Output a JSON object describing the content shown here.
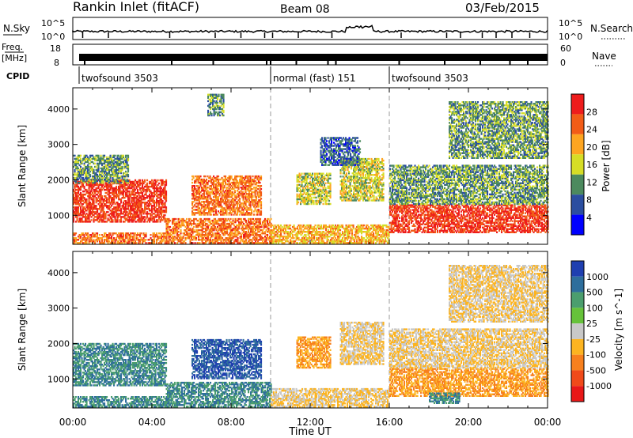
{
  "header": {
    "title": "Rankin Inlet (fitACF)",
    "beam": "Beam 08",
    "date": "03/Feb/2015"
  },
  "noise_panel": {
    "left_label": "N.Sky",
    "left_ticks": [
      "10^5",
      "10^0"
    ],
    "right_ticks": [
      "10^5",
      "10^0"
    ],
    "right_label": "N.Search",
    "right_label_style": "dotted"
  },
  "freq_panel": {
    "left_label_top": "Freq.",
    "left_label_bottom": "[MHz]",
    "left_ticks": [
      "18",
      "8"
    ],
    "right_ticks": [
      "60",
      "0"
    ],
    "right_label": "Nave",
    "right_label_style": "dotted"
  },
  "cpid": {
    "label": "CPID",
    "segments": [
      {
        "start_hour": 0.0,
        "text": "twofsound 3503"
      },
      {
        "start_hour": 10.0,
        "text": "normal (fast) 151"
      },
      {
        "start_hour": 16.0,
        "text": "twofsound 3503"
      }
    ]
  },
  "chart_data": [
    {
      "type": "heatmap",
      "quantity": "power",
      "ylabel": "Slant Range [km]",
      "xlabel": "Time UT",
      "x_range_hours": [
        0,
        24
      ],
      "ylim": [
        180,
        4600
      ],
      "yticks": [
        1000,
        2000,
        3000,
        4000
      ],
      "colorbar": {
        "label": "Power [dB]",
        "range": [
          0,
          32
        ],
        "ticks": [
          4,
          8,
          12,
          16,
          20,
          24,
          28
        ],
        "colors": [
          "#0000ff",
          "#2b4ea0",
          "#4c8a5e",
          "#d6dd26",
          "#fda521",
          "#f25c17",
          "#ee1c1c"
        ]
      },
      "echo_regions": [
        {
          "t0": 0.0,
          "t1": 4.7,
          "r0": 800,
          "r1": 2000,
          "level": 28
        },
        {
          "t0": 0.0,
          "t1": 2.8,
          "r0": 1900,
          "r1": 2700,
          "level": 12
        },
        {
          "t0": 0.0,
          "t1": 4.7,
          "r0": 200,
          "r1": 500,
          "level": 24
        },
        {
          "t0": 4.7,
          "t1": 10.0,
          "r0": 200,
          "r1": 900,
          "level": 24
        },
        {
          "t0": 6.0,
          "t1": 9.5,
          "r0": 1000,
          "r1": 2100,
          "level": 24
        },
        {
          "t0": 10.0,
          "t1": 16.0,
          "r0": 200,
          "r1": 700,
          "level": 20
        },
        {
          "t0": 11.3,
          "t1": 13.0,
          "r0": 1300,
          "r1": 2200,
          "level": 16
        },
        {
          "t0": 13.5,
          "t1": 15.7,
          "r0": 1400,
          "r1": 2600,
          "level": 16
        },
        {
          "t0": 12.5,
          "t1": 14.5,
          "r0": 2400,
          "r1": 3200,
          "level": 8
        },
        {
          "t0": 16.0,
          "t1": 24.0,
          "r0": 500,
          "r1": 1300,
          "level": 28
        },
        {
          "t0": 16.0,
          "t1": 24.0,
          "r0": 1300,
          "r1": 2400,
          "level": 12
        },
        {
          "t0": 19.0,
          "t1": 24.0,
          "r0": 2600,
          "r1": 4200,
          "level": 12
        },
        {
          "t0": 6.8,
          "t1": 7.6,
          "r0": 3800,
          "r1": 4400,
          "level": 12
        }
      ]
    },
    {
      "type": "heatmap",
      "quantity": "velocity",
      "ylabel": "Slant Range [km]",
      "xlabel": "Time UT",
      "x_range_hours": [
        0,
        24
      ],
      "x_ticks": [
        "00:00",
        "04:00",
        "08:00",
        "12:00",
        "16:00",
        "20:00",
        "00:00"
      ],
      "ylim": [
        180,
        4600
      ],
      "yticks": [
        1000,
        2000,
        3000,
        4000
      ],
      "colorbar": {
        "label": "Velocity [m s^-1]",
        "tick_labels": [
          "1000",
          "500",
          "100",
          "25",
          "-25",
          "-100",
          "-500",
          "-1000"
        ],
        "colors": [
          "#1f3fb0",
          "#2e6e9c",
          "#4b9e6e",
          "#66c23a",
          "#c8c8c8",
          "#fcb421",
          "#f7801e",
          "#f04a1a",
          "#e81818"
        ]
      },
      "echo_regions": [
        {
          "t0": 0.0,
          "t1": 4.7,
          "r0": 800,
          "r1": 2000,
          "level": 100
        },
        {
          "t0": 0.0,
          "t1": 4.7,
          "r0": 200,
          "r1": 500,
          "level": 100
        },
        {
          "t0": 4.7,
          "t1": 10.0,
          "r0": 200,
          "r1": 900,
          "level": 100
        },
        {
          "t0": 6.0,
          "t1": 9.5,
          "r0": 1000,
          "r1": 2100,
          "level": 500
        },
        {
          "t0": 10.0,
          "t1": 16.0,
          "r0": 200,
          "r1": 700,
          "level": -100
        },
        {
          "t0": 11.3,
          "t1": 13.0,
          "r0": 1300,
          "r1": 2200,
          "level": -500
        },
        {
          "t0": 13.5,
          "t1": 15.7,
          "r0": 1400,
          "r1": 2600,
          "level": -100
        },
        {
          "t0": 16.0,
          "t1": 24.0,
          "r0": 500,
          "r1": 1300,
          "level": -500
        },
        {
          "t0": 16.0,
          "t1": 24.0,
          "r0": 1300,
          "r1": 2400,
          "level": -100
        },
        {
          "t0": 19.0,
          "t1": 24.0,
          "r0": 2600,
          "r1": 4200,
          "level": -100
        },
        {
          "t0": 18.0,
          "t1": 19.5,
          "r0": 300,
          "r1": 600,
          "level": 100
        }
      ]
    }
  ]
}
